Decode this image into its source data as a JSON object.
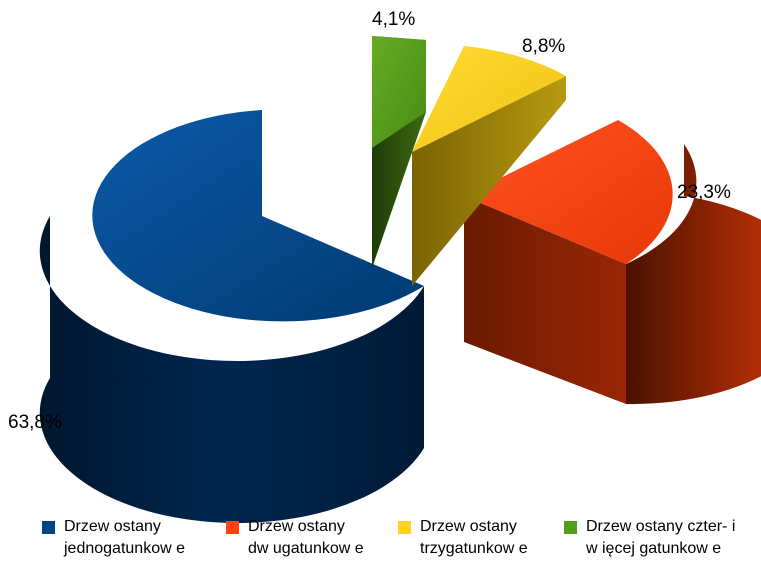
{
  "chart_data": {
    "type": "pie",
    "style": "3d-exploded",
    "title": "",
    "slices": [
      {
        "name": "Drzew ostany jednogatunkow e",
        "label_lines": [
          "Drzew ostany",
          "jednogatunkow e"
        ],
        "value": 63.8,
        "value_label": "63,8%",
        "color": "#004586"
      },
      {
        "name": "Drzew ostany dw ugatunkow e",
        "label_lines": [
          "Drzew ostany",
          "dw ugatunkow e"
        ],
        "value": 23.3,
        "value_label": "23,3%",
        "color": "#ff420e"
      },
      {
        "name": "Drzew ostany trzygatunkow e",
        "label_lines": [
          "Drzew ostany",
          "trzygatunkow e"
        ],
        "value": 8.8,
        "value_label": "8,8%",
        "color": "#ffd320"
      },
      {
        "name": "Drzew ostany czter- i w ięcej gatunkow e",
        "label_lines": [
          "Drzew ostany czter- i",
          "w ięcej gatunkow e"
        ],
        "value": 4.1,
        "value_label": "4,1%",
        "color": "#579d1c"
      }
    ],
    "legend_position": "bottom"
  }
}
